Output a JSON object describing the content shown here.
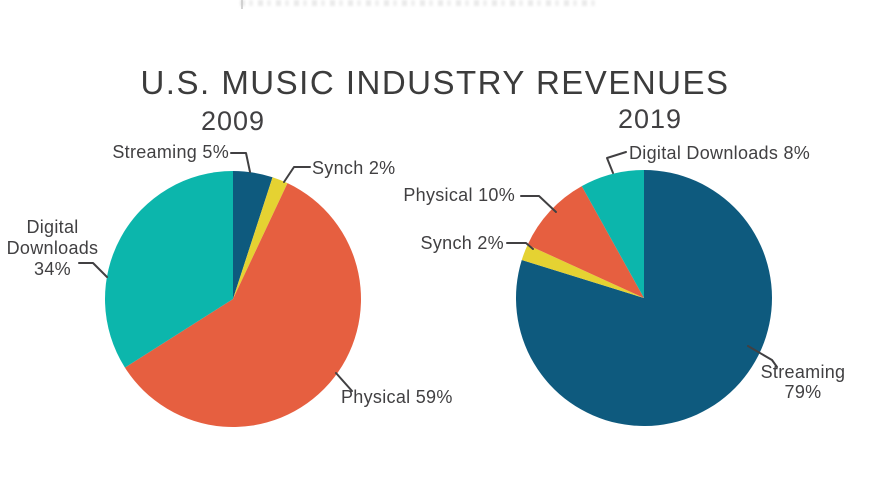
{
  "page": {
    "title": "U.S. MUSIC INDUSTRY REVENUES"
  },
  "colors": {
    "streaming_blue": "#0E5A7E",
    "synch_yellow": "#E5D232",
    "physical_orange": "#E65F40",
    "digital_downloads_teal": "#0CB6AC",
    "text": "#414042",
    "leader_line": "#414042",
    "background": "#FFFFFF"
  },
  "chart_data": [
    {
      "type": "pie",
      "title": "2009",
      "unit": "%",
      "order": "clockwise-from-12-o-clock",
      "slices": [
        {
          "label": "Streaming",
          "value": 5,
          "color": "#0E5A7E"
        },
        {
          "label": "Synch",
          "value": 2,
          "color": "#E5D232"
        },
        {
          "label": "Physical",
          "value": 59,
          "color": "#E65F40"
        },
        {
          "label": "Digital Downloads",
          "value": 34,
          "color": "#0CB6AC"
        }
      ],
      "callouts": [
        {
          "for": "Streaming",
          "lines": [
            "Streaming 5%"
          ]
        },
        {
          "for": "Synch",
          "lines": [
            "Synch 2%"
          ]
        },
        {
          "for": "Physical",
          "lines": [
            "Physical 59%"
          ]
        },
        {
          "for": "Digital Downloads",
          "lines": [
            "Digital",
            "Downloads",
            "34%"
          ]
        }
      ]
    },
    {
      "type": "pie",
      "title": "2019",
      "unit": "%",
      "order": "clockwise-from-12-o-clock",
      "slices": [
        {
          "label": "Streaming",
          "value": 79,
          "color": "#0E5A7E"
        },
        {
          "label": "Synch",
          "value": 2,
          "color": "#E5D232"
        },
        {
          "label": "Physical",
          "value": 10,
          "color": "#E65F40"
        },
        {
          "label": "Digital Downloads",
          "value": 8,
          "color": "#0CB6AC"
        }
      ],
      "callouts": [
        {
          "for": "Digital Downloads",
          "lines": [
            "Digital Downloads 8%"
          ]
        },
        {
          "for": "Physical",
          "lines": [
            "Physical 10%"
          ]
        },
        {
          "for": "Synch",
          "lines": [
            "Synch 2%"
          ]
        },
        {
          "for": "Streaming",
          "lines": [
            "Streaming",
            "79%"
          ]
        }
      ]
    }
  ]
}
